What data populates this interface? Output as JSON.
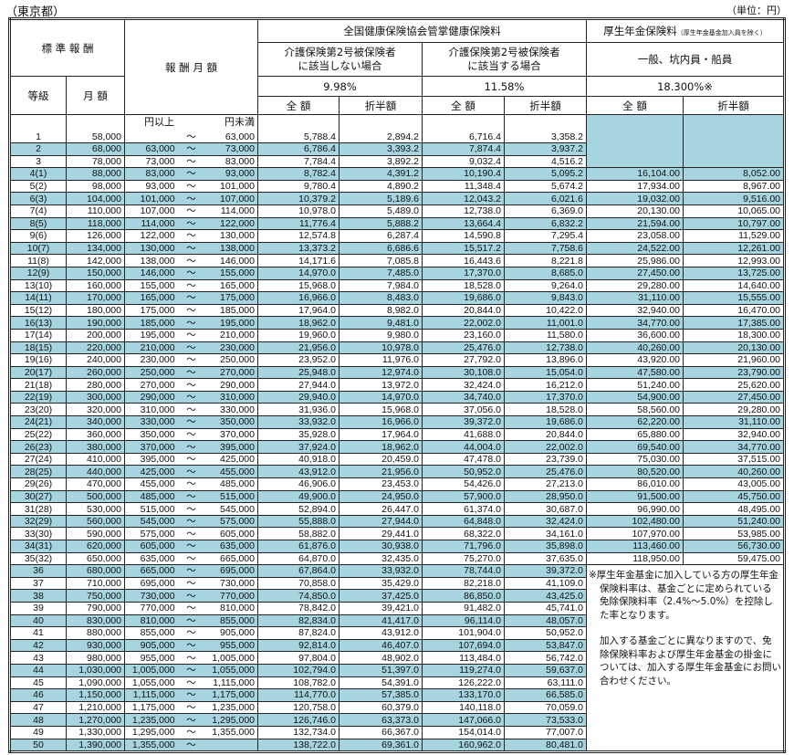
{
  "header": {
    "prefecture": "（東京都）",
    "unit": "（単位：円）"
  },
  "columns": {
    "standard_remuneration": "標 準 報 酬",
    "remuneration_monthly": "報 酬 月 額",
    "health_insurance": "全国健康保険協会管掌健康保険料",
    "pension_insurance": "厚生年金保険料",
    "pension_note": "（厚生年金基金加入員を除く）",
    "not_care_insured": "介護保険第2号被保険者\nに該当しない場合",
    "not_care_insured_l1": "介護保険第2号被保険者",
    "not_care_insured_l2": "に該当しない場合",
    "care_insured_l1": "介護保険第2号被保険者",
    "care_insured_l2": "に該当する場合",
    "pension_category": "一般、坑内員・船員",
    "grade": "等級",
    "monthly": "月 額",
    "rate_health": "9.98%",
    "rate_health_care": "11.58%",
    "rate_pension": "18.300%※",
    "full": "全 額",
    "half": "折半額",
    "from_label": "円以上",
    "to_label": "円未満",
    "tilde": "～"
  },
  "colors": {
    "shade": "#a6d5e0"
  },
  "rows": [
    [
      "1",
      "58,000",
      "",
      "63,000",
      "5,788.4",
      "2,894.2",
      "6,716.4",
      "3,358.2",
      "",
      ""
    ],
    [
      "2",
      "68,000",
      "63,000",
      "73,000",
      "6,786.4",
      "3,393.2",
      "7,874.4",
      "3,937.2",
      "",
      ""
    ],
    [
      "3",
      "78,000",
      "73,000",
      "83,000",
      "7,784.4",
      "3,892.2",
      "9,032.4",
      "4,516.2",
      "",
      ""
    ],
    [
      "4(1)",
      "88,000",
      "83,000",
      "93,000",
      "8,782.4",
      "4,391.2",
      "10,190.4",
      "5,095.2",
      "16,104.00",
      "8,052.00"
    ],
    [
      "5(2)",
      "98,000",
      "93,000",
      "101,000",
      "9,780.4",
      "4,890.2",
      "11,348.4",
      "5,674.2",
      "17,934.00",
      "8,967.00"
    ],
    [
      "6(3)",
      "104,000",
      "101,000",
      "107,000",
      "10,379.2",
      "5,189.6",
      "12,043.2",
      "6,021.6",
      "19,032.00",
      "9,516.00"
    ],
    [
      "7(4)",
      "110,000",
      "107,000",
      "114,000",
      "10,978.0",
      "5,489.0",
      "12,738.0",
      "6,369.0",
      "20,130.00",
      "10,065.00"
    ],
    [
      "8(5)",
      "118,000",
      "114,000",
      "122,000",
      "11,776.4",
      "5,888.2",
      "13,664.4",
      "6,832.2",
      "21,594.00",
      "10,797.00"
    ],
    [
      "9(6)",
      "126,000",
      "122,000",
      "130,000",
      "12,574.8",
      "6,287.4",
      "14,590.8",
      "7,295.4",
      "23,058.00",
      "11,529.00"
    ],
    [
      "10(7)",
      "134,000",
      "130,000",
      "138,000",
      "13,373.2",
      "6,686.6",
      "15,517.2",
      "7,758.6",
      "24,522.00",
      "12,261.00"
    ],
    [
      "11(8)",
      "142,000",
      "138,000",
      "146,000",
      "14,171.6",
      "7,085.8",
      "16,443.6",
      "8,221.8",
      "25,986.00",
      "12,993.00"
    ],
    [
      "12(9)",
      "150,000",
      "146,000",
      "155,000",
      "14,970.0",
      "7,485.0",
      "17,370.0",
      "8,685.0",
      "27,450.00",
      "13,725.00"
    ],
    [
      "13(10)",
      "160,000",
      "155,000",
      "165,000",
      "15,968.0",
      "7,984.0",
      "18,528.0",
      "9,264.0",
      "29,280.00",
      "14,640.00"
    ],
    [
      "14(11)",
      "170,000",
      "165,000",
      "175,000",
      "16,966.0",
      "8,483.0",
      "19,686.0",
      "9,843.0",
      "31,110.00",
      "15,555.00"
    ],
    [
      "15(12)",
      "180,000",
      "175,000",
      "185,000",
      "17,964.0",
      "8,982.0",
      "20,844.0",
      "10,422.0",
      "32,940.00",
      "16,470.00"
    ],
    [
      "16(13)",
      "190,000",
      "185,000",
      "195,000",
      "18,962.0",
      "9,481.0",
      "22,002.0",
      "11,001.0",
      "34,770.00",
      "17,385.00"
    ],
    [
      "17(14)",
      "200,000",
      "195,000",
      "210,000",
      "19,960.0",
      "9,980.0",
      "23,160.0",
      "11,580.0",
      "36,600.00",
      "18,300.00"
    ],
    [
      "18(15)",
      "220,000",
      "210,000",
      "230,000",
      "21,956.0",
      "10,978.0",
      "25,476.0",
      "12,738.0",
      "40,260.00",
      "20,130.00"
    ],
    [
      "19(16)",
      "240,000",
      "230,000",
      "250,000",
      "23,952.0",
      "11,976.0",
      "27,792.0",
      "13,896.0",
      "43,920.00",
      "21,960.00"
    ],
    [
      "20(17)",
      "260,000",
      "250,000",
      "270,000",
      "25,948.0",
      "12,974.0",
      "30,108.0",
      "15,054.0",
      "47,580.00",
      "23,790.00"
    ],
    [
      "21(18)",
      "280,000",
      "270,000",
      "290,000",
      "27,944.0",
      "13,972.0",
      "32,424.0",
      "16,212.0",
      "51,240.00",
      "25,620.00"
    ],
    [
      "22(19)",
      "300,000",
      "290,000",
      "310,000",
      "29,940.0",
      "14,970.0",
      "34,740.0",
      "17,370.0",
      "54,900.00",
      "27,450.00"
    ],
    [
      "23(20)",
      "320,000",
      "310,000",
      "330,000",
      "31,936.0",
      "15,968.0",
      "37,056.0",
      "18,528.0",
      "58,560.00",
      "29,280.00"
    ],
    [
      "24(21)",
      "340,000",
      "330,000",
      "350,000",
      "33,932.0",
      "16,966.0",
      "39,372.0",
      "19,686.0",
      "62,220.00",
      "31,110.00"
    ],
    [
      "25(22)",
      "360,000",
      "350,000",
      "370,000",
      "35,928.0",
      "17,964.0",
      "41,688.0",
      "20,844.0",
      "65,880.00",
      "32,940.00"
    ],
    [
      "26(23)",
      "380,000",
      "370,000",
      "395,000",
      "37,924.0",
      "18,962.0",
      "44,004.0",
      "22,002.0",
      "69,540.00",
      "34,770.00"
    ],
    [
      "27(24)",
      "410,000",
      "395,000",
      "425,000",
      "40,918.0",
      "20,459.0",
      "47,478.0",
      "23,739.0",
      "75,030.00",
      "37,515.00"
    ],
    [
      "28(25)",
      "440,000",
      "425,000",
      "455,000",
      "43,912.0",
      "21,956.0",
      "50,952.0",
      "25,476.0",
      "80,520.00",
      "40,260.00"
    ],
    [
      "29(26)",
      "470,000",
      "455,000",
      "485,000",
      "46,906.0",
      "23,453.0",
      "54,426.0",
      "27,213.0",
      "86,010.00",
      "43,005.00"
    ],
    [
      "30(27)",
      "500,000",
      "485,000",
      "515,000",
      "49,900.0",
      "24,950.0",
      "57,900.0",
      "28,950.0",
      "91,500.00",
      "45,750.00"
    ],
    [
      "31(28)",
      "530,000",
      "515,000",
      "545,000",
      "52,894.0",
      "26,447.0",
      "61,374.0",
      "30,687.0",
      "96,990.00",
      "48,495.00"
    ],
    [
      "32(29)",
      "560,000",
      "545,000",
      "575,000",
      "55,888.0",
      "27,944.0",
      "64,848.0",
      "32,424.0",
      "102,480.00",
      "51,240.00"
    ],
    [
      "33(30)",
      "590,000",
      "575,000",
      "605,000",
      "58,882.0",
      "29,441.0",
      "68,322.0",
      "34,161.0",
      "107,970.00",
      "53,985.00"
    ],
    [
      "34(31)",
      "620,000",
      "605,000",
      "635,000",
      "61,876.0",
      "30,938.0",
      "71,796.0",
      "35,898.0",
      "113,460.00",
      "56,730.00"
    ],
    [
      "35(32)",
      "650,000",
      "635,000",
      "665,000",
      "64,870.0",
      "32,435.0",
      "75,270.0",
      "37,635.0",
      "118,950.00",
      "59,475.00"
    ],
    [
      "36",
      "680,000",
      "665,000",
      "695,000",
      "67,864.0",
      "33,932.0",
      "78,744.0",
      "39,372.0",
      "",
      ""
    ],
    [
      "37",
      "710,000",
      "695,000",
      "730,000",
      "70,858.0",
      "35,429.0",
      "82,218.0",
      "41,109.0",
      "",
      ""
    ],
    [
      "38",
      "750,000",
      "730,000",
      "770,000",
      "74,850.0",
      "37,425.0",
      "86,850.0",
      "43,425.0",
      "",
      ""
    ],
    [
      "39",
      "790,000",
      "770,000",
      "810,000",
      "78,842.0",
      "39,421.0",
      "91,482.0",
      "45,741.0",
      "",
      ""
    ],
    [
      "40",
      "830,000",
      "810,000",
      "855,000",
      "82,834.0",
      "41,417.0",
      "96,114.0",
      "48,057.0",
      "",
      ""
    ],
    [
      "41",
      "880,000",
      "855,000",
      "905,000",
      "87,824.0",
      "43,912.0",
      "101,904.0",
      "50,952.0",
      "",
      ""
    ],
    [
      "42",
      "930,000",
      "905,000",
      "955,000",
      "92,814.0",
      "46,407.0",
      "107,694.0",
      "53,847.0",
      "",
      ""
    ],
    [
      "43",
      "980,000",
      "955,000",
      "1,005,000",
      "97,804.0",
      "48,902.0",
      "113,484.0",
      "56,742.0",
      "",
      ""
    ],
    [
      "44",
      "1,030,000",
      "1,005,000",
      "1,055,000",
      "102,794.0",
      "51,397.0",
      "119,274.0",
      "59,637.0",
      "",
      ""
    ],
    [
      "45",
      "1,090,000",
      "1,055,000",
      "1,115,000",
      "108,782.0",
      "54,391.0",
      "126,222.0",
      "63,111.0",
      "",
      ""
    ],
    [
      "46",
      "1,150,000",
      "1,115,000",
      "1,175,000",
      "114,770.0",
      "57,385.0",
      "133,170.0",
      "66,585.0",
      "",
      ""
    ],
    [
      "47",
      "1,210,000",
      "1,175,000",
      "1,235,000",
      "120,758.0",
      "60,379.0",
      "140,118.0",
      "70,059.0",
      "",
      ""
    ],
    [
      "48",
      "1,270,000",
      "1,235,000",
      "1,295,000",
      "126,746.0",
      "63,373.0",
      "147,066.0",
      "73,533.0",
      "",
      ""
    ],
    [
      "49",
      "1,330,000",
      "1,295,000",
      "1,355,000",
      "132,734.0",
      "66,367.0",
      "154,014.0",
      "77,007.0",
      "",
      ""
    ],
    [
      "50",
      "1,390,000",
      "1,355,000",
      "",
      "138,722.0",
      "69,361.0",
      "160,962.0",
      "80,481.0",
      "",
      ""
    ]
  ],
  "note": {
    "p1": "※厚生年金基金に加入している方の厚生年金保険料率は、基金ごとに定められている免除保険料率（2.4%～5.0%）を控除した率となります。",
    "p2": "加入する基金ごとに異なりますので、免除保険料率および厚生年金基金の掛金については、加入する厚生年金基金にお問い合わせください。"
  }
}
